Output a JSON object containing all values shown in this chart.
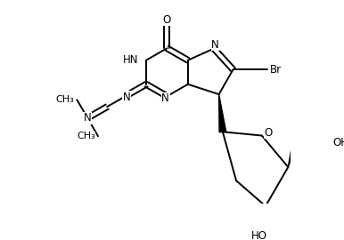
{
  "background": "#ffffff",
  "line_color": "#000000",
  "line_width": 1.4,
  "font_size": 8.5,
  "figsize": [
    3.86,
    2.7
  ],
  "dpi": 100,
  "xlim": [
    0,
    386
  ],
  "ylim": [
    0,
    270
  ]
}
